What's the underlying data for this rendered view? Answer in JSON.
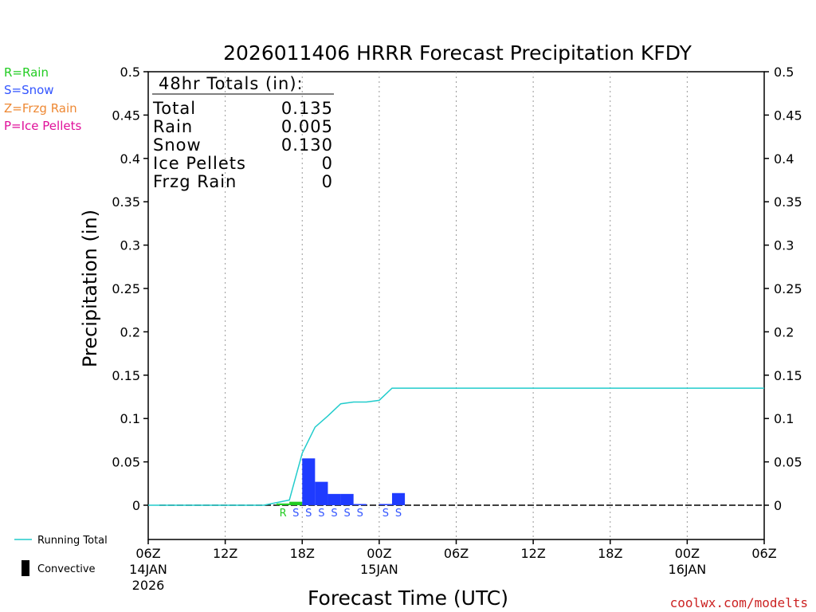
{
  "title": "2026011406 HRRR Forecast Precipitation KFDY",
  "site_credit": "coolwx.com/modelts",
  "colors": {
    "rain": "#22cc22",
    "snow": "#1f3bff",
    "frzg_rain": "#ee8833",
    "ice_pellets": "#e0109a",
    "running_total": "#22cccc",
    "credit": "#cc2222"
  },
  "type_legend": [
    {
      "label": "R=Rain",
      "color": "#22cc22"
    },
    {
      "label": "S=Snow",
      "color": "#3355ff"
    },
    {
      "label": "Z=Frzg Rain",
      "color": "#ee8833"
    },
    {
      "label": "P=Ice Pellets",
      "color": "#e0109a"
    }
  ],
  "bottom_legend": {
    "running_total_label": "Running Total",
    "convective_label": "Convective"
  },
  "totals_box": {
    "header": "48hr Totals (in):",
    "rows": [
      {
        "label": "Total",
        "value": "0.135"
      },
      {
        "label": "Rain",
        "value": "0.005"
      },
      {
        "label": "Snow",
        "value": "0.130"
      },
      {
        "label": "Ice Pellets",
        "value": "0"
      },
      {
        "label": "Frzg Rain",
        "value": "0"
      }
    ]
  },
  "chart_data": {
    "type": "bar",
    "xlabel": "Forecast Time (UTC)",
    "ylabel": "Precipitation (in)",
    "ylim": [
      -0.04,
      0.5
    ],
    "yticks": [
      0,
      0.05,
      0.1,
      0.15,
      0.2,
      0.25,
      0.3,
      0.35,
      0.4,
      0.45,
      0.5
    ],
    "ytick_labels": [
      "0",
      "0.05",
      "0.1",
      "0.15",
      "0.2",
      "0.25",
      "0.3",
      "0.35",
      "0.4",
      "0.45",
      "0.5"
    ],
    "xlim_hours": [
      0,
      48
    ],
    "xticks": [
      {
        "hour": 0,
        "label": "06Z",
        "date": "14JAN",
        "year": "2026"
      },
      {
        "hour": 6,
        "label": "12Z"
      },
      {
        "hour": 12,
        "label": "18Z"
      },
      {
        "hour": 18,
        "label": "00Z",
        "date": "15JAN"
      },
      {
        "hour": 24,
        "label": "06Z"
      },
      {
        "hour": 30,
        "label": "12Z"
      },
      {
        "hour": 36,
        "label": "18Z"
      },
      {
        "hour": 42,
        "label": "00Z",
        "date": "16JAN"
      },
      {
        "hour": 48,
        "label": "06Z"
      }
    ],
    "grid": "dotted vertical at tick hours",
    "bars": [
      {
        "hour": 10,
        "value": 0.002,
        "type": "R"
      },
      {
        "hour": 11,
        "value": 0.004,
        "type": "R"
      },
      {
        "hour": 12,
        "value": 0.054,
        "type": "S"
      },
      {
        "hour": 13,
        "value": 0.027,
        "type": "S"
      },
      {
        "hour": 14,
        "value": 0.013,
        "type": "S"
      },
      {
        "hour": 15,
        "value": 0.013,
        "type": "S"
      },
      {
        "hour": 16,
        "value": 0.001,
        "type": "S"
      },
      {
        "hour": 18,
        "value": 0.001,
        "type": "S"
      },
      {
        "hour": 19,
        "value": 0.014,
        "type": "S"
      }
    ],
    "type_markers": [
      {
        "hour": 10,
        "type": "R"
      },
      {
        "hour": 11,
        "type": "S"
      },
      {
        "hour": 12,
        "type": "S"
      },
      {
        "hour": 13,
        "type": "S"
      },
      {
        "hour": 14,
        "type": "S"
      },
      {
        "hour": 15,
        "type": "S"
      },
      {
        "hour": 16,
        "type": "S"
      },
      {
        "hour": 18,
        "type": "S"
      },
      {
        "hour": 19,
        "type": "S"
      }
    ],
    "running_total": {
      "hours": [
        0,
        9,
        10,
        11,
        12,
        13,
        14,
        15,
        16,
        17,
        18,
        19,
        48
      ],
      "values": [
        0,
        0,
        0.003,
        0.006,
        0.06,
        0.09,
        0.103,
        0.117,
        0.119,
        0.119,
        0.121,
        0.135,
        0.135
      ]
    }
  }
}
